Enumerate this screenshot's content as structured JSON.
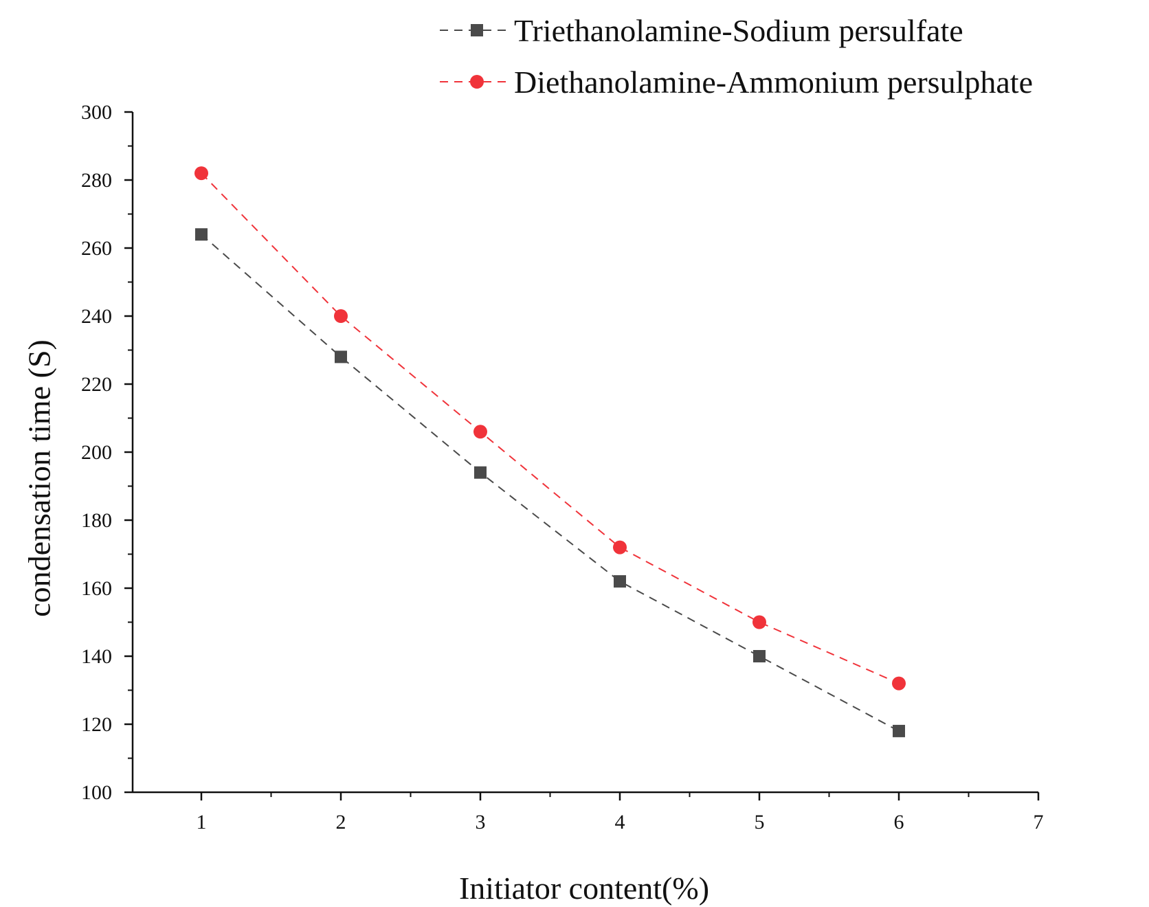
{
  "chart_data": {
    "type": "line",
    "title": "",
    "xlabel": "Initiator content(%)",
    "ylabel": "condensation time (S)",
    "xlim": [
      0.5,
      7
    ],
    "ylim": [
      100,
      300
    ],
    "x_ticks": [
      1,
      2,
      3,
      4,
      5,
      6,
      7
    ],
    "x_tick_labels": [
      "1",
      "2",
      "3",
      "4",
      "5",
      "6",
      "7"
    ],
    "y_ticks": [
      100,
      120,
      140,
      160,
      180,
      200,
      220,
      240,
      260,
      280,
      300
    ],
    "y_tick_labels": [
      "100",
      "120",
      "140",
      "160",
      "180",
      "200",
      "220",
      "240",
      "260",
      "280",
      "300"
    ],
    "legend_position": "top-right",
    "grid": false,
    "x": [
      1,
      2,
      3,
      4,
      5,
      6
    ],
    "series": [
      {
        "name": "Triethanolamine-Sodium persulfate",
        "marker": "square",
        "line_style": "dashed",
        "color": "#4a4a4a",
        "values": [
          264,
          228,
          194,
          162,
          140,
          118
        ]
      },
      {
        "name": "Diethanolamine-Ammonium persulphate",
        "marker": "circle",
        "line_style": "dashed",
        "color": "#f0333a",
        "values": [
          282,
          240,
          206,
          172,
          150,
          132
        ]
      }
    ]
  }
}
